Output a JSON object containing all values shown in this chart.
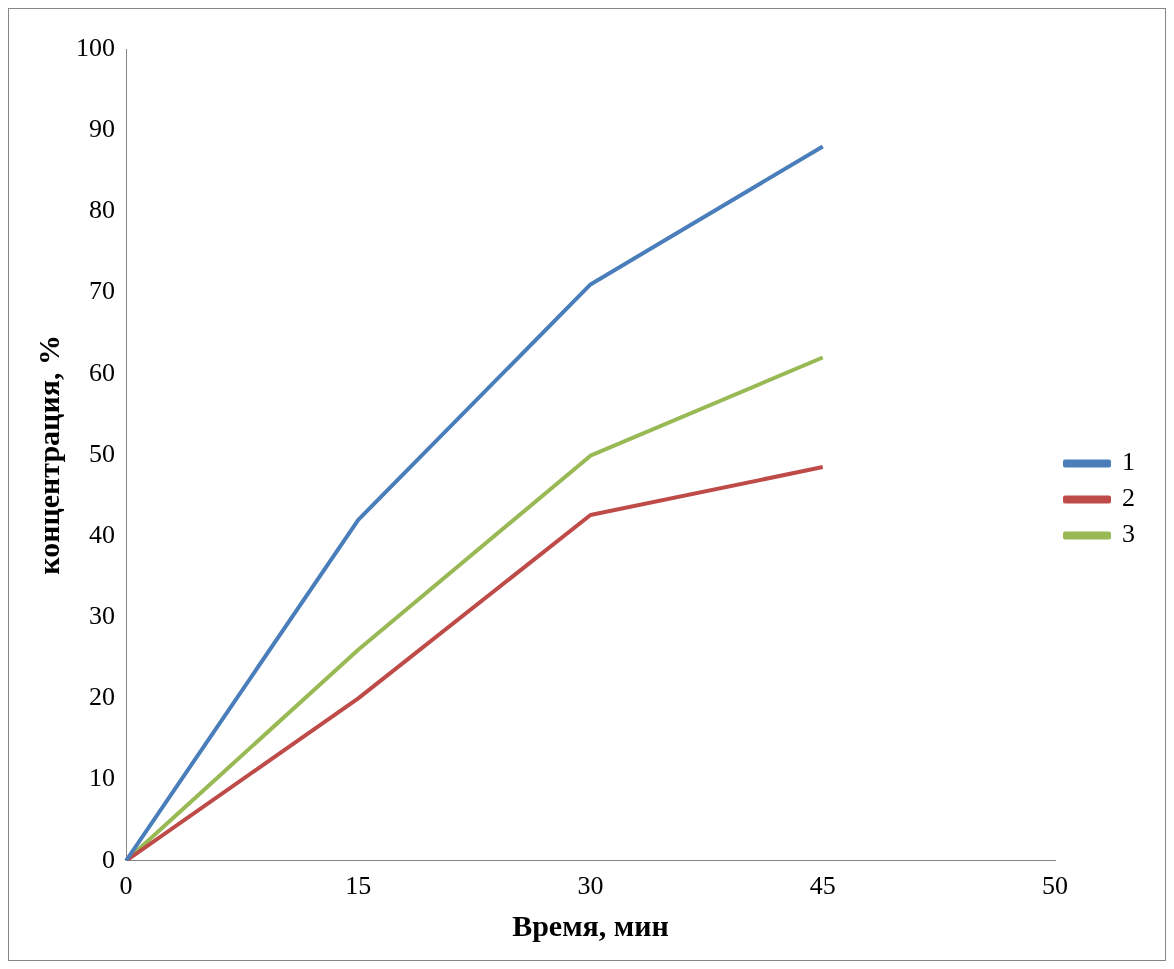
{
  "chart_data": {
    "type": "line",
    "xlabel": "Время, мин",
    "ylabel": "концентрация, %",
    "categories": [
      "0",
      "15",
      "30",
      "45",
      "50"
    ],
    "series": [
      {
        "name": "1",
        "color": "#4a7ebb",
        "values": [
          0,
          42,
          71,
          88,
          null
        ]
      },
      {
        "name": "2",
        "color": "#be4b48",
        "values": [
          0,
          20,
          42.6,
          48.5,
          null
        ]
      },
      {
        "name": "3",
        "color": "#98b954",
        "values": [
          0,
          26,
          49.9,
          62,
          null
        ]
      }
    ],
    "ylim": [
      0,
      100
    ],
    "yticks": [
      0,
      10,
      20,
      30,
      40,
      50,
      60,
      70,
      80,
      90,
      100
    ],
    "grid": false,
    "legend": "right",
    "marker": "none",
    "line_style": "solid"
  }
}
